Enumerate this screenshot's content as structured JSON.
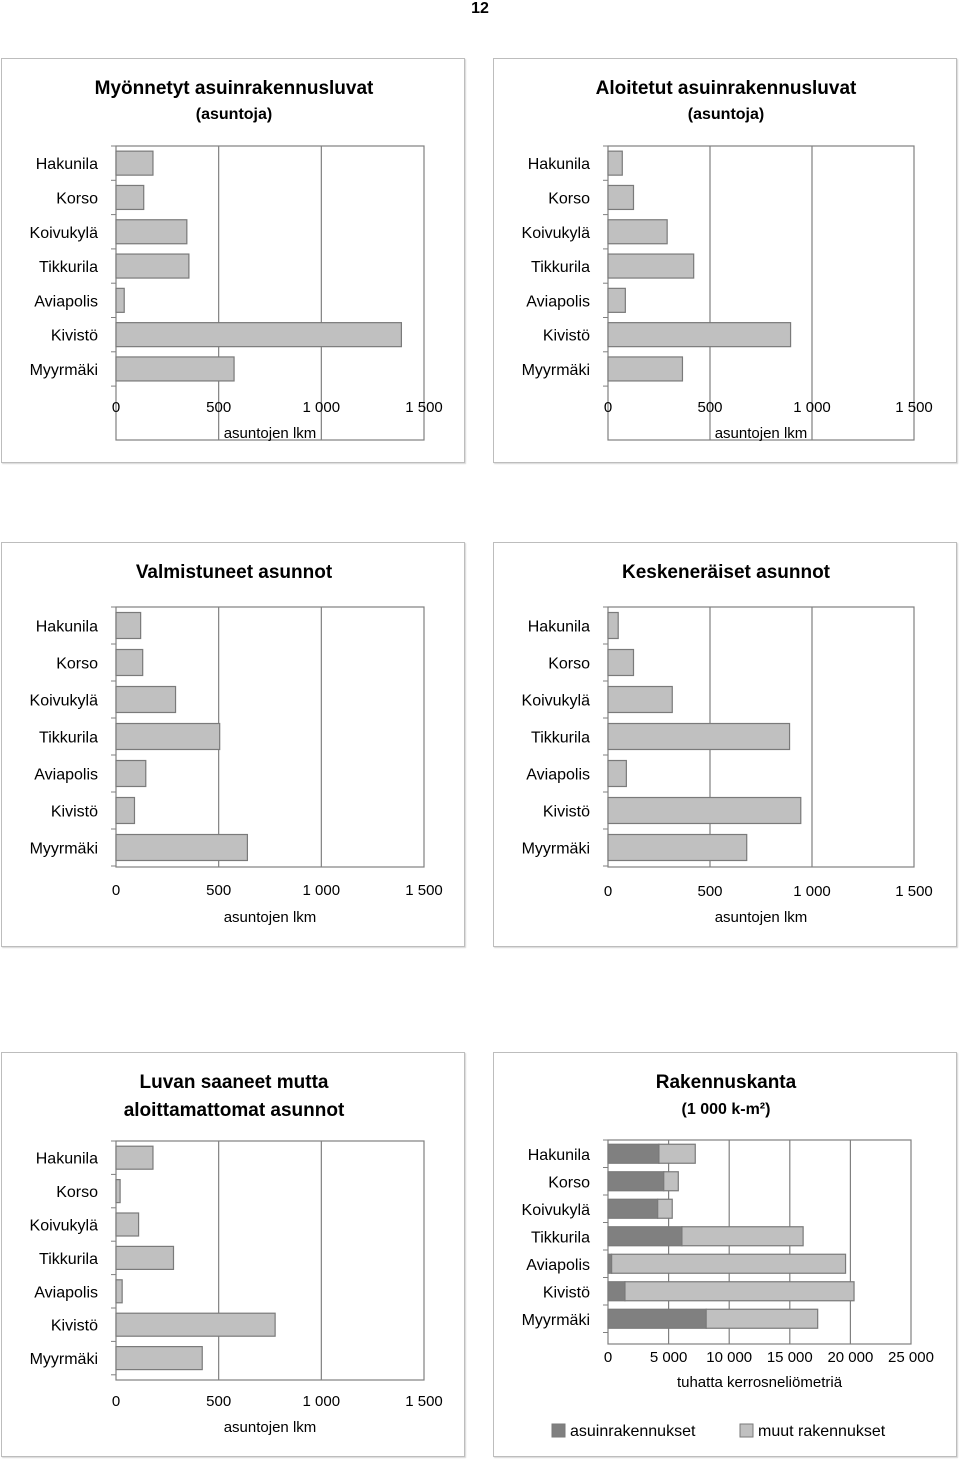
{
  "page_number": "12",
  "colors": {
    "bar_fill": "#c0c0c0",
    "bar_stroke": "#7a7a7a",
    "dark_fill": "#808080",
    "grid": "#808080",
    "axis": "#808080",
    "frame": "#bdbdbd"
  },
  "chart_data": [
    {
      "type": "bar",
      "title": "Myönnetyt asuinrakennusluvat",
      "subtitle": "(asuntoja)",
      "categories": [
        "Hakunila",
        "Korso",
        "Koivukylä",
        "Tikkurila",
        "Aviapolis",
        "Kivistö",
        "Myyrmäki"
      ],
      "values": [
        180,
        135,
        345,
        355,
        40,
        1390,
        575
      ],
      "xlim": [
        0,
        1500
      ],
      "xticks": [
        0,
        500,
        1000,
        1500
      ],
      "xtick_labels": [
        "0",
        "500",
        "1 000",
        "1 500"
      ],
      "xlabel": "asuntojen lkm",
      "ylabel": "",
      "orientation": "horizontal",
      "grid": "vertical"
    },
    {
      "type": "bar",
      "title": "Aloitetut asuinrakennusluvat",
      "subtitle": "(asuntoja)",
      "categories": [
        "Hakunila",
        "Korso",
        "Koivukylä",
        "Tikkurila",
        "Aviapolis",
        "Kivistö",
        "Myyrmäki"
      ],
      "values": [
        70,
        125,
        290,
        420,
        85,
        895,
        365
      ],
      "xlim": [
        0,
        1500
      ],
      "xticks": [
        0,
        500,
        1000,
        1500
      ],
      "xtick_labels": [
        "0",
        "500",
        "1 000",
        "1 500"
      ],
      "xlabel": "asuntojen lkm",
      "ylabel": "",
      "orientation": "horizontal",
      "grid": "vertical"
    },
    {
      "type": "bar",
      "title": "Valmistuneet asunnot",
      "subtitle": "",
      "categories": [
        "Hakunila",
        "Korso",
        "Koivukylä",
        "Tikkurila",
        "Aviapolis",
        "Kivistö",
        "Myyrmäki"
      ],
      "values": [
        120,
        130,
        290,
        505,
        145,
        90,
        640
      ],
      "xlim": [
        0,
        1500
      ],
      "xticks": [
        0,
        500,
        1000,
        1500
      ],
      "xtick_labels": [
        "0",
        "500",
        "1 000",
        "1 500"
      ],
      "xlabel": "asuntojen lkm",
      "ylabel": "",
      "orientation": "horizontal",
      "grid": "vertical"
    },
    {
      "type": "bar",
      "title": "Keskeneräiset asunnot",
      "subtitle": "",
      "categories": [
        "Hakunila",
        "Korso",
        "Koivukylä",
        "Tikkurila",
        "Aviapolis",
        "Kivistö",
        "Myyrmäki"
      ],
      "values": [
        50,
        125,
        315,
        890,
        90,
        945,
        680
      ],
      "xlim": [
        0,
        1500
      ],
      "xticks": [
        0,
        500,
        1000,
        1500
      ],
      "xtick_labels": [
        "0",
        "500",
        "1 000",
        "1 500"
      ],
      "xlabel": "asuntojen lkm",
      "ylabel": "",
      "orientation": "horizontal",
      "grid": "vertical"
    },
    {
      "type": "bar",
      "title": "Luvan saaneet mutta aloittamattomat asunnot",
      "title_lines": [
        "Luvan saaneet mutta",
        "aloittamattomat asunnot"
      ],
      "subtitle": "",
      "categories": [
        "Hakunila",
        "Korso",
        "Koivukylä",
        "Tikkurila",
        "Aviapolis",
        "Kivistö",
        "Myyrmäki"
      ],
      "values": [
        180,
        20,
        110,
        280,
        30,
        775,
        420
      ],
      "xlim": [
        0,
        1500
      ],
      "xticks": [
        0,
        500,
        1000,
        1500
      ],
      "xtick_labels": [
        "0",
        "500",
        "1 000",
        "1 500"
      ],
      "xlabel": "asuntojen lkm",
      "ylabel": "",
      "orientation": "horizontal",
      "grid": "vertical"
    },
    {
      "type": "bar",
      "stacked": true,
      "title": "Rakennuskanta",
      "subtitle": "(1 000 k-m²)",
      "categories": [
        "Hakunila",
        "Korso",
        "Koivukylä",
        "Tikkurila",
        "Aviapolis",
        "Kivistö",
        "Myyrmäki"
      ],
      "series": [
        {
          "name": "asuinrakennukset",
          "values": [
            4200,
            4600,
            4100,
            6100,
            300,
            1400,
            8100
          ],
          "color": "#808080"
        },
        {
          "name": "muut rakennukset",
          "values": [
            3000,
            1200,
            1200,
            10000,
            19300,
            18900,
            9200
          ],
          "color": "#c0c0c0"
        }
      ],
      "xlim": [
        0,
        25000
      ],
      "xticks": [
        0,
        5000,
        10000,
        15000,
        20000,
        25000
      ],
      "xtick_labels": [
        "0",
        "5 000",
        "10 000",
        "15 000",
        "20 000",
        "25 000"
      ],
      "xlabel": "tuhatta kerrosneliömetriä",
      "ylabel": "",
      "orientation": "horizontal",
      "grid": "vertical",
      "legend": "bottom"
    }
  ]
}
